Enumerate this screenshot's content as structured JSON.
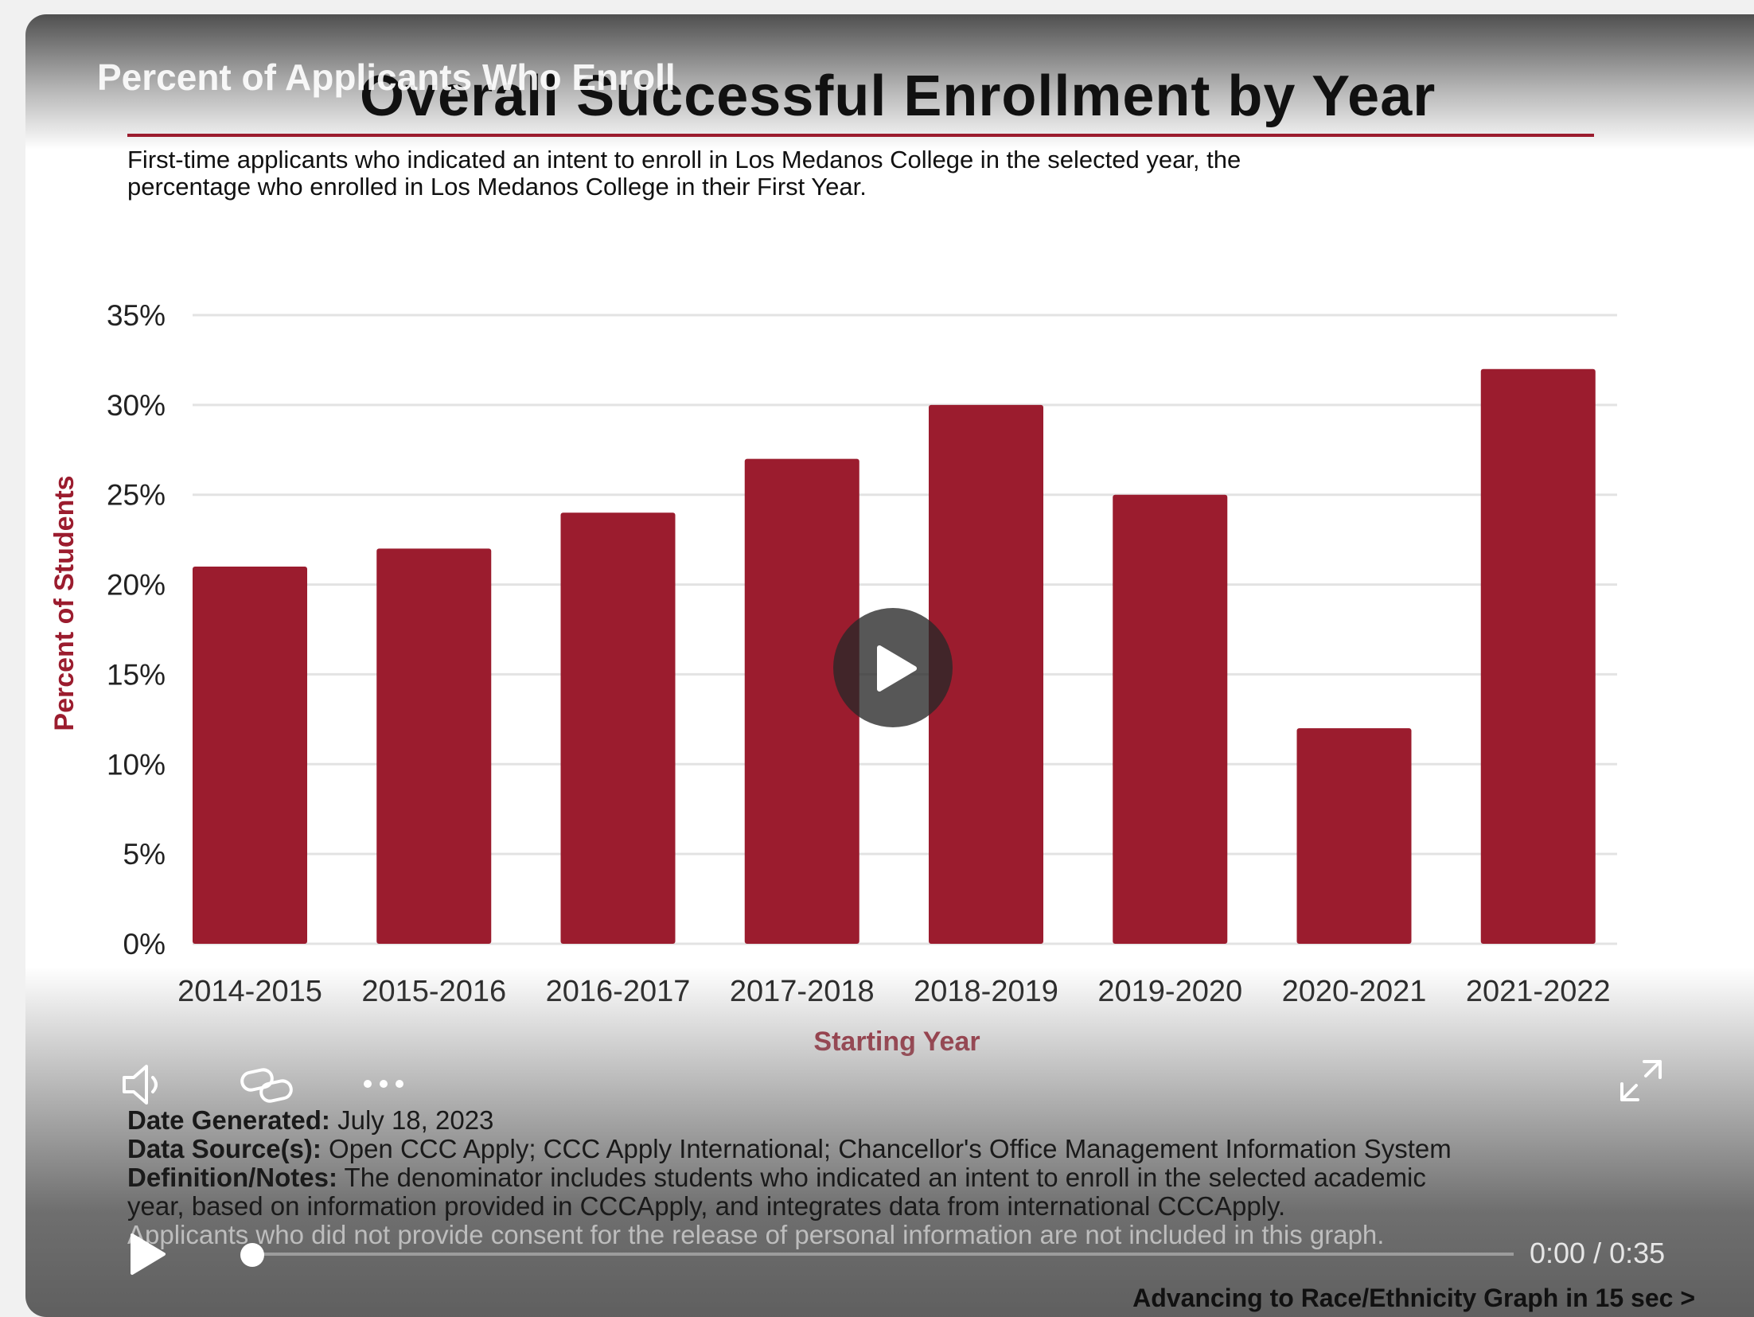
{
  "player": {
    "video_title": "Percent of Applicants Who Enroll",
    "current_time": "0:00",
    "duration": "0:35",
    "time_separator": " / ",
    "progress": 0,
    "controls": {
      "play": "play-icon",
      "volume": "volume-icon",
      "link": "link-icon",
      "more": "more-icon",
      "fullscreen": "fullscreen-icon",
      "big_play": "play-icon"
    }
  },
  "slide": {
    "footnotes": {
      "date_label": "Date Generated:",
      "date_value": " July 18, 2023",
      "source_label": "Data Source(s):",
      "source_value": " Open CCC Apply; CCC Apply International; Chancellor's Office Management Information System",
      "notes_label": "Definition/Notes:",
      "notes_value": " The denominator includes students who indicated an intent to enroll in the selected academic",
      "notes_line2": "year, based on information provided in CCCApply, and integrates data from international CCCApply.",
      "notes_line3": "Applicants who did not provide consent for the release of personal information are not included in this graph."
    },
    "advance_text": "Advancing to Race/Ethnicity Graph in 15 sec >"
  },
  "chart_data": {
    "type": "bar",
    "title": "Overall Successful Enrollment by Year",
    "subtitle_line1": "First-time applicants who indicated an intent to enroll in Los Medanos College in the selected year, the",
    "subtitle_line2": "percentage who enrolled in Los Medanos College in their First Year.",
    "xlabel": "Starting Year",
    "ylabel": "Percent of Students",
    "categories": [
      "2014-2015",
      "2015-2016",
      "2016-2017",
      "2017-2018",
      "2018-2019",
      "2019-2020",
      "2020-2021",
      "2021-2022"
    ],
    "values": [
      21,
      22,
      24,
      27,
      30,
      25,
      12,
      32
    ],
    "ylim": [
      0,
      35
    ],
    "yticks": [
      "0%",
      "5%",
      "10%",
      "15%",
      "20%",
      "25%",
      "30%",
      "35%"
    ],
    "grid": true,
    "bar_color": "#9b1c2e",
    "label_color": "#9b1c2e"
  }
}
